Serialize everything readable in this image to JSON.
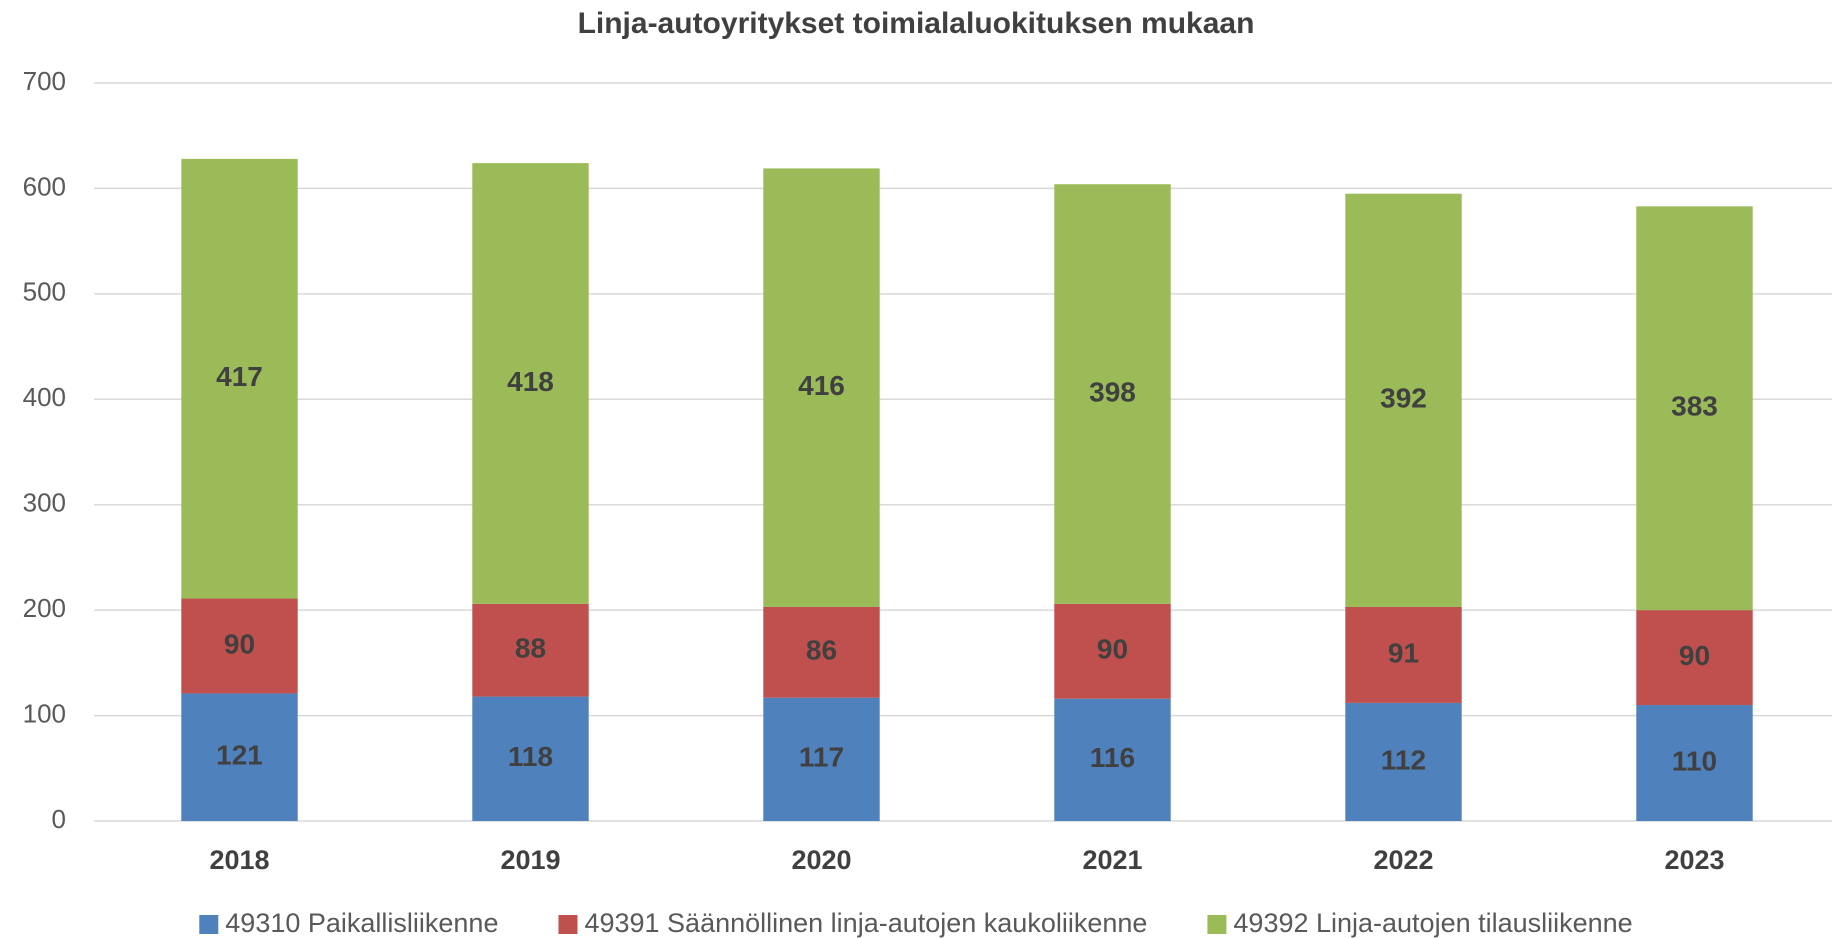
{
  "chart_data": {
    "type": "stacked_bar",
    "title": "Linja-autoyritykset toimialaluokituksen mukaan",
    "categories": [
      "2018",
      "2019",
      "2020",
      "2021",
      "2022",
      "2023"
    ],
    "series": [
      {
        "name": "49310 Paikallisliikenne",
        "color": "#4f81bd",
        "values": [
          121,
          118,
          117,
          116,
          112,
          110
        ]
      },
      {
        "name": "49391 Säännöllinen linja-autojen kaukoliikenne",
        "color": "#c0504d",
        "values": [
          90,
          88,
          86,
          90,
          91,
          90
        ]
      },
      {
        "name": "49392 Linja-autojen tilausliikenne",
        "color": "#9bbb59",
        "values": [
          417,
          418,
          416,
          398,
          392,
          383
        ]
      }
    ],
    "ylim": [
      0,
      700
    ],
    "yticks": [
      0,
      100,
      200,
      300,
      400,
      500,
      600,
      700
    ],
    "grid": true,
    "legend": "bottom"
  }
}
